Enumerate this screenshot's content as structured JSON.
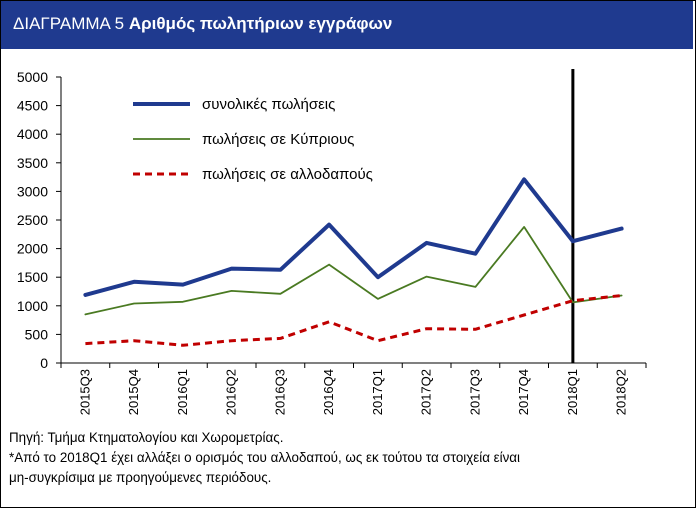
{
  "title": {
    "prefix": "ΔΙΑΓΡΑΜΜΑ 5",
    "main": "Αριθμός πωλητήριων εγγράφων"
  },
  "chart_data": {
    "type": "line",
    "categories": [
      "2015Q3",
      "2015Q4",
      "2016Q1",
      "2016Q2",
      "2016Q3",
      "2016Q4",
      "2017Q1",
      "2017Q2",
      "2017Q3",
      "2017Q4",
      "2018Q1",
      "2018Q2"
    ],
    "ylim": [
      0,
      5000
    ],
    "yticks": [
      0,
      500,
      1000,
      1500,
      2000,
      2500,
      3000,
      3500,
      4000,
      4500,
      5000
    ],
    "grid": false,
    "legend_position": "top-left",
    "marker_line_category": "2018Q1",
    "series": [
      {
        "name": "συνολικές πωλήσεις",
        "color": "#1f3a8f",
        "style": "solid-thick",
        "values": [
          1190,
          1420,
          1370,
          1650,
          1630,
          2420,
          1500,
          2100,
          1910,
          3210,
          2130,
          2350
        ]
      },
      {
        "name": "πωλήσεις σε Κύπριους",
        "color": "#4a7a22",
        "style": "solid-thin",
        "values": [
          850,
          1040,
          1070,
          1260,
          1210,
          1720,
          1120,
          1510,
          1330,
          2380,
          1060,
          1180
        ]
      },
      {
        "name": "πωλήσεις σε αλλοδαπούς",
        "color": "#c00000",
        "style": "dashed",
        "values": [
          340,
          390,
          310,
          390,
          430,
          720,
          390,
          600,
          590,
          840,
          1090,
          1180
        ]
      }
    ]
  },
  "notes": {
    "source": "Πηγή: Τμήμα Κτηματολογίου και Χωρομετρίας.",
    "footnote_line1": "*Από το 2018Q1 έχει αλλάξει ο ορισμός του αλλοδαπού, ως εκ τούτου τα στοιχεία είναι",
    "footnote_line2": "μη-συγκρίσιμα με προηγούμενες περιόδους."
  }
}
